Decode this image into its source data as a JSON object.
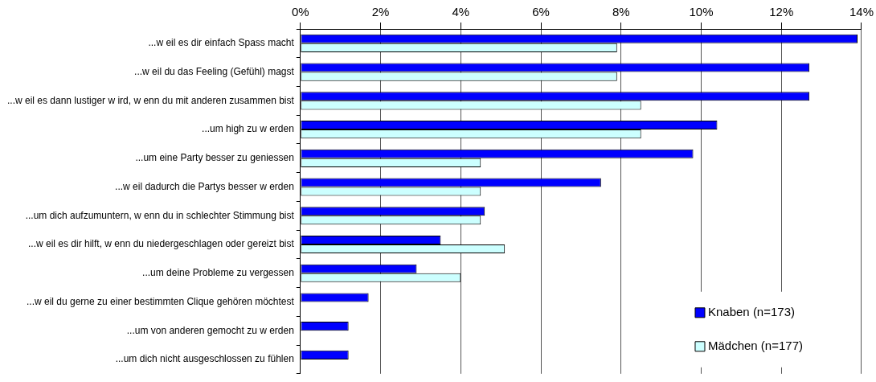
{
  "chart_data": {
    "type": "bar",
    "orientation": "horizontal",
    "categories": [
      "...w eil es dir einfach Spass macht",
      "...w eil du das Feeling (Gefühl) magst",
      "...w eil es dann lustiger w ird, w enn du mit anderen zusammen bist",
      "...um high zu w erden",
      "...um eine Party besser zu geniessen",
      "...w eil dadurch die Partys besser w erden",
      "...um dich aufzumuntern, w enn du in schlechter Stimmung bist",
      "...w eil es dir hilft, w enn du niedergeschlagen oder gereizt bist",
      "...um deine Probleme zu vergessen",
      "...w eil du gerne zu einer bestimmten Clique gehören möchtest",
      "...um von anderen gemocht zu w erden",
      "...um dich nicht ausgeschlossen zu fühlen"
    ],
    "series": [
      {
        "name": "Knaben (n=173)",
        "color": "#0000ff",
        "values": [
          13.9,
          12.7,
          12.7,
          10.4,
          9.8,
          7.5,
          4.6,
          3.5,
          2.9,
          1.7,
          1.2,
          1.2
        ]
      },
      {
        "name": "Mädchen (n=177)",
        "color": "#ccffff",
        "values": [
          7.9,
          7.9,
          8.5,
          8.5,
          4.5,
          4.5,
          4.5,
          5.1,
          4.0,
          null,
          null,
          null
        ]
      }
    ],
    "xlim": [
      0,
      14
    ],
    "xticks": [
      {
        "value": 0,
        "label": "0%"
      },
      {
        "value": 2,
        "label": "2%"
      },
      {
        "value": 4,
        "label": "4%"
      },
      {
        "value": 6,
        "label": "6%"
      },
      {
        "value": 8,
        "label": "8%"
      },
      {
        "value": 10,
        "label": "10%"
      },
      {
        "value": 12,
        "label": "12%"
      },
      {
        "value": 14,
        "label": "14%"
      }
    ],
    "grid": "x",
    "legend": "bottom right"
  }
}
